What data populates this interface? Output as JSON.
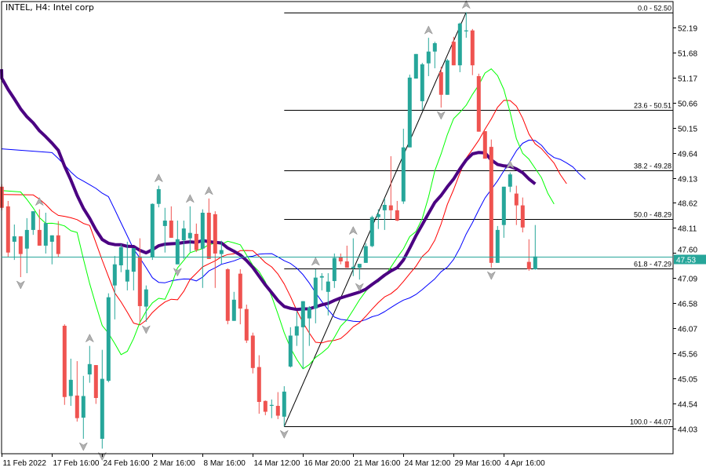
{
  "window": {
    "title": "INTEL, H4:  Intel corp"
  },
  "chart_data": {
    "type": "candlestick",
    "title": "INTEL, H4:  Intel corp",
    "symbol": "INTEL",
    "timeframe": "H4",
    "ylim": [
      43.72,
      52.75
    ],
    "y_ticks": [
      "52.19",
      "51.68",
      "51.17",
      "50.66",
      "50.15",
      "49.64",
      "49.13",
      "48.62",
      "48.11",
      "47.60",
      "47.09",
      "46.58",
      "46.07",
      "45.56",
      "45.05",
      "44.54",
      "44.03"
    ],
    "x_ticks": [
      {
        "bar": 0,
        "label": "11 Feb 2022"
      },
      {
        "bar": 8,
        "label": "17 Feb 16:00"
      },
      {
        "bar": 16,
        "label": "24 Feb 16:00"
      },
      {
        "bar": 24,
        "label": "2 Mar 16:00"
      },
      {
        "bar": 32,
        "label": "8 Mar 16:00"
      },
      {
        "bar": 40,
        "label": "14 Mar 12:00"
      },
      {
        "bar": 48,
        "label": "16 Mar 20:00"
      },
      {
        "bar": 56,
        "label": "21 Mar 16:00"
      },
      {
        "bar": 64,
        "label": "24 Mar 12:00"
      },
      {
        "bar": 72,
        "label": "29 Mar 16:00"
      },
      {
        "bar": 80,
        "label": "4 Apr 16:00"
      }
    ],
    "current_price": "47.53",
    "colors": {
      "bull": "#26a69a",
      "bear": "#ef5350",
      "jaw": "#0000ff",
      "teeth": "#ff0000",
      "lips": "#00ff00",
      "ma": "#4b0082",
      "current": "#26a69a"
    },
    "ohlc": [
      [
        48.95,
        49.0,
        48.47,
        48.52
      ],
      [
        48.55,
        48.66,
        47.51,
        47.61
      ],
      [
        47.83,
        48.18,
        47.46,
        47.94
      ],
      [
        47.94,
        47.94,
        47.11,
        47.58
      ],
      [
        47.69,
        48.31,
        47.19,
        48.07
      ],
      [
        48.07,
        48.45,
        47.97,
        48.45
      ],
      [
        48.07,
        48.49,
        47.75,
        47.75
      ],
      [
        47.75,
        48.42,
        47.59,
        48.21
      ],
      [
        47.83,
        47.96,
        47.37,
        47.96
      ],
      [
        47.96,
        48.25,
        47.51,
        47.58
      ],
      [
        46.12,
        46.15,
        44.51,
        44.67
      ],
      [
        44.69,
        45.45,
        44.49,
        45.02
      ],
      [
        44.7,
        45.4,
        44.17,
        44.24
      ],
      [
        44.25,
        45.1,
        43.82,
        44.69
      ],
      [
        45.13,
        45.71,
        44.96,
        45.34
      ],
      [
        45.32,
        45.32,
        44.53,
        44.65
      ],
      [
        43.82,
        45.63,
        43.62,
        45.04
      ],
      [
        45.0,
        46.78,
        44.97,
        46.7
      ],
      [
        46.94,
        47.54,
        46.25,
        47.37
      ],
      [
        47.35,
        47.78,
        47.21,
        47.72
      ],
      [
        47.02,
        47.83,
        46.84,
        47.26
      ],
      [
        47.22,
        47.7,
        46.84,
        47.7
      ],
      [
        47.53,
        47.9,
        46.2,
        46.52
      ],
      [
        46.51,
        46.94,
        46.2,
        46.86
      ],
      [
        47.51,
        48.61,
        47.46,
        48.6
      ],
      [
        48.6,
        48.97,
        48.53,
        48.9
      ],
      [
        48.15,
        48.52,
        47.61,
        48.26
      ],
      [
        48.26,
        48.55,
        47.91,
        47.91
      ],
      [
        47.37,
        48.26,
        47.37,
        47.88
      ],
      [
        47.86,
        48.26,
        47.48,
        48.1
      ],
      [
        47.9,
        48.55,
        47.62,
        48.01
      ],
      [
        47.99,
        48.2,
        47.62,
        47.66
      ],
      [
        47.69,
        48.49,
        46.89,
        48.42
      ],
      [
        48.42,
        48.71,
        47.48,
        47.48
      ],
      [
        48.39,
        48.45,
        46.89,
        47.59
      ],
      [
        47.58,
        47.85,
        47.38,
        47.66
      ],
      [
        47.27,
        47.29,
        46.15,
        46.22
      ],
      [
        46.22,
        46.81,
        46.22,
        46.65
      ],
      [
        47.18,
        47.27,
        46.15,
        46.47
      ],
      [
        46.46,
        46.55,
        45.77,
        45.82
      ],
      [
        45.92,
        45.98,
        45.15,
        45.26
      ],
      [
        45.28,
        45.52,
        44.33,
        44.57
      ],
      [
        44.59,
        44.6,
        44.3,
        44.37
      ],
      [
        44.49,
        44.62,
        44.24,
        44.51
      ],
      [
        44.49,
        44.77,
        44.22,
        44.29
      ],
      [
        44.27,
        44.89,
        44.07,
        44.78
      ],
      [
        45.29,
        46.09,
        45.27,
        45.92
      ],
      [
        45.92,
        46.41,
        45.71,
        46.11
      ],
      [
        46.09,
        46.62,
        45.24,
        46.62
      ],
      [
        46.27,
        46.52,
        45.71,
        46.49
      ],
      [
        46.47,
        47.27,
        46.17,
        47.1
      ],
      [
        47.1,
        47.19,
        46.84,
        47.13
      ],
      [
        46.81,
        47.19,
        46.33,
        47.02
      ],
      [
        47.03,
        47.59,
        46.89,
        47.5
      ],
      [
        47.51,
        47.59,
        47.37,
        47.43
      ],
      [
        47.43,
        47.75,
        47.3,
        47.3
      ],
      [
        47.29,
        47.9,
        47.13,
        47.32
      ],
      [
        47.3,
        47.38,
        47.06,
        47.38
      ],
      [
        47.4,
        47.8,
        47.4,
        47.74
      ],
      [
        47.74,
        48.36,
        47.72,
        48.33
      ],
      [
        48.33,
        48.49,
        48.09,
        48.39
      ],
      [
        48.47,
        48.71,
        48.07,
        48.58
      ],
      [
        48.57,
        49.57,
        48.29,
        48.47
      ],
      [
        48.47,
        48.66,
        48.25,
        48.26
      ],
      [
        48.65,
        50.13,
        48.6,
        49.75
      ],
      [
        49.75,
        51.23,
        49.75,
        51.17
      ],
      [
        51.15,
        51.65,
        51.15,
        51.65
      ],
      [
        50.69,
        51.47,
        50.51,
        51.44
      ],
      [
        51.46,
        51.98,
        51.2,
        51.7
      ],
      [
        51.7,
        51.9,
        51.36,
        51.87
      ],
      [
        51.28,
        51.39,
        50.56,
        50.82
      ],
      [
        50.82,
        51.55,
        50.82,
        51.52
      ],
      [
        51.9,
        52.0,
        51.42,
        51.42
      ],
      [
        51.42,
        52.29,
        51.28,
        52.27
      ],
      [
        52.11,
        52.5,
        51.98,
        52.13
      ],
      [
        52.13,
        52.16,
        51.22,
        51.42
      ],
      [
        51.2,
        51.25,
        50.07,
        50.07
      ],
      [
        50.08,
        50.08,
        49.52,
        49.52
      ],
      [
        49.76,
        49.91,
        47.3,
        47.4
      ],
      [
        47.4,
        48.15,
        47.4,
        48.07
      ],
      [
        48.17,
        48.95,
        47.91,
        48.95
      ],
      [
        48.95,
        49.24,
        48.84,
        49.2
      ],
      [
        48.81,
        48.97,
        48.17,
        48.57
      ],
      [
        48.57,
        48.73,
        48.02,
        48.12
      ],
      [
        47.42,
        47.88,
        47.24,
        47.27
      ],
      [
        47.27,
        48.17,
        47.26,
        47.53
      ]
    ],
    "indicators": {
      "alligator": {
        "jaw": {
          "period": 13,
          "shift": 8,
          "start": 49.72
        },
        "teeth": {
          "period": 8,
          "shift": 5,
          "start": 48.79
        },
        "lips": {
          "period": 5,
          "shift": 3,
          "start": 48.87
        }
      },
      "moving_average": {
        "type": "EMA",
        "period": 30,
        "start": 51.34
      },
      "fractals": {
        "up": [
          6,
          14,
          25,
          30,
          33,
          50,
          56,
          68,
          74,
          81
        ],
        "down": [
          3,
          13,
          16,
          23,
          28,
          45,
          57,
          70,
          78
        ]
      }
    },
    "fibonacci": {
      "from_bar": 45,
      "to_bar": 74,
      "low": 44.07,
      "high": 52.5,
      "levels": [
        {
          "price": 52.5,
          "label": "0.0 - 52.50"
        },
        {
          "price": 50.51,
          "label": "23.6 - 50.51"
        },
        {
          "price": 49.28,
          "label": "38.2 - 49.28"
        },
        {
          "price": 48.29,
          "label": "50.0 - 48.29"
        },
        {
          "price": 47.29,
          "label": "61.8 - 47.29"
        },
        {
          "price": 44.07,
          "label": "100.0 - 44.07"
        }
      ]
    },
    "grid": false
  }
}
